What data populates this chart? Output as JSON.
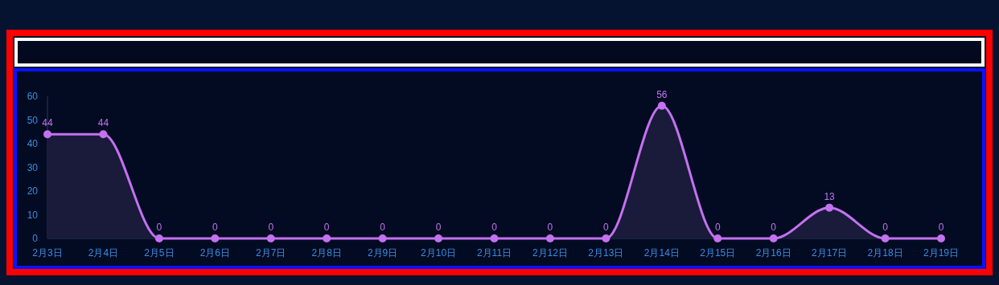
{
  "chart_data": {
    "type": "area",
    "categories": [
      "2月3日",
      "2月4日",
      "2月5日",
      "2月6日",
      "2月7日",
      "2月8日",
      "2月9日",
      "2月10日",
      "2月11日",
      "2月12日",
      "2月13日",
      "2月14日",
      "2月15日",
      "2月16日",
      "2月17日",
      "2月18日",
      "2月19日"
    ],
    "series": [
      {
        "color": "#c471f0",
        "values": [
          44,
          44,
          0,
          0,
          0,
          0,
          0,
          0,
          0,
          0,
          0,
          56,
          0,
          0,
          13,
          0,
          0
        ]
      }
    ],
    "ylim": [
      0,
      60
    ],
    "yticks": [
      0,
      10,
      20,
      30,
      40,
      50,
      60
    ],
    "grid": false,
    "marker": "circle",
    "line_style": "solid",
    "data_labels": true
  }
}
